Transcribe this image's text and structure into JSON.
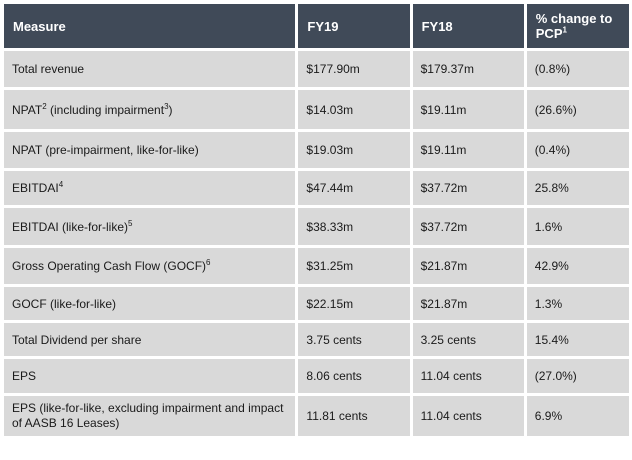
{
  "table": {
    "headers": {
      "measure": "Measure",
      "fy19": "FY19",
      "fy18": "FY18",
      "change": "% change to PCP",
      "change_note": "1"
    },
    "rows": [
      {
        "measure": "Total revenue",
        "note": "",
        "suffix": "",
        "fy19": "$177.90m",
        "fy18": "$179.37m",
        "change": "(0.8%)"
      },
      {
        "measure": "NPAT",
        "note": "2",
        "suffix": " (including impairment",
        "suffix_note": "3",
        "suffix_end": ")",
        "fy19": "$14.03m",
        "fy18": "$19.11m",
        "change": "(26.6%)"
      },
      {
        "measure": "NPAT (pre-impairment, like-for-like)",
        "note": "",
        "suffix": "",
        "fy19": "$19.03m",
        "fy18": "$19.11m",
        "change": "(0.4%)"
      },
      {
        "measure": "EBITDAI",
        "note": "4",
        "suffix": "",
        "fy19": "$47.44m",
        "fy18": "$37.72m",
        "change": "25.8%"
      },
      {
        "measure": "EBITDAI (like-for-like)",
        "note": "5",
        "suffix": "",
        "fy19": "$38.33m",
        "fy18": "$37.72m",
        "change": "1.6%"
      },
      {
        "measure": "Gross Operating Cash Flow (GOCF)",
        "note": "6",
        "suffix": "",
        "fy19": "$31.25m",
        "fy18": "$21.87m",
        "change": "42.9%"
      },
      {
        "measure": "GOCF (like-for-like)",
        "note": "",
        "suffix": "",
        "fy19": "$22.15m",
        "fy18": "$21.87m",
        "change": "1.3%"
      },
      {
        "measure": "Total Dividend per share",
        "note": "",
        "suffix": "",
        "fy19": "3.75 cents",
        "fy18": "3.25 cents",
        "change": "15.4%"
      },
      {
        "measure": "EPS",
        "note": "",
        "suffix": "",
        "fy19": "8.06 cents",
        "fy18": "11.04 cents",
        "change": "(27.0%)"
      },
      {
        "measure": "EPS (like-for-like, excluding impairment and impact of AASB 16 Leases)",
        "note": "",
        "suffix": "",
        "fy19": "11.81 cents",
        "fy18": "11.04 cents",
        "change": "6.9%"
      }
    ]
  },
  "colors": {
    "header_bg": "#404a58",
    "cell_bg": "#d9d9d9"
  }
}
